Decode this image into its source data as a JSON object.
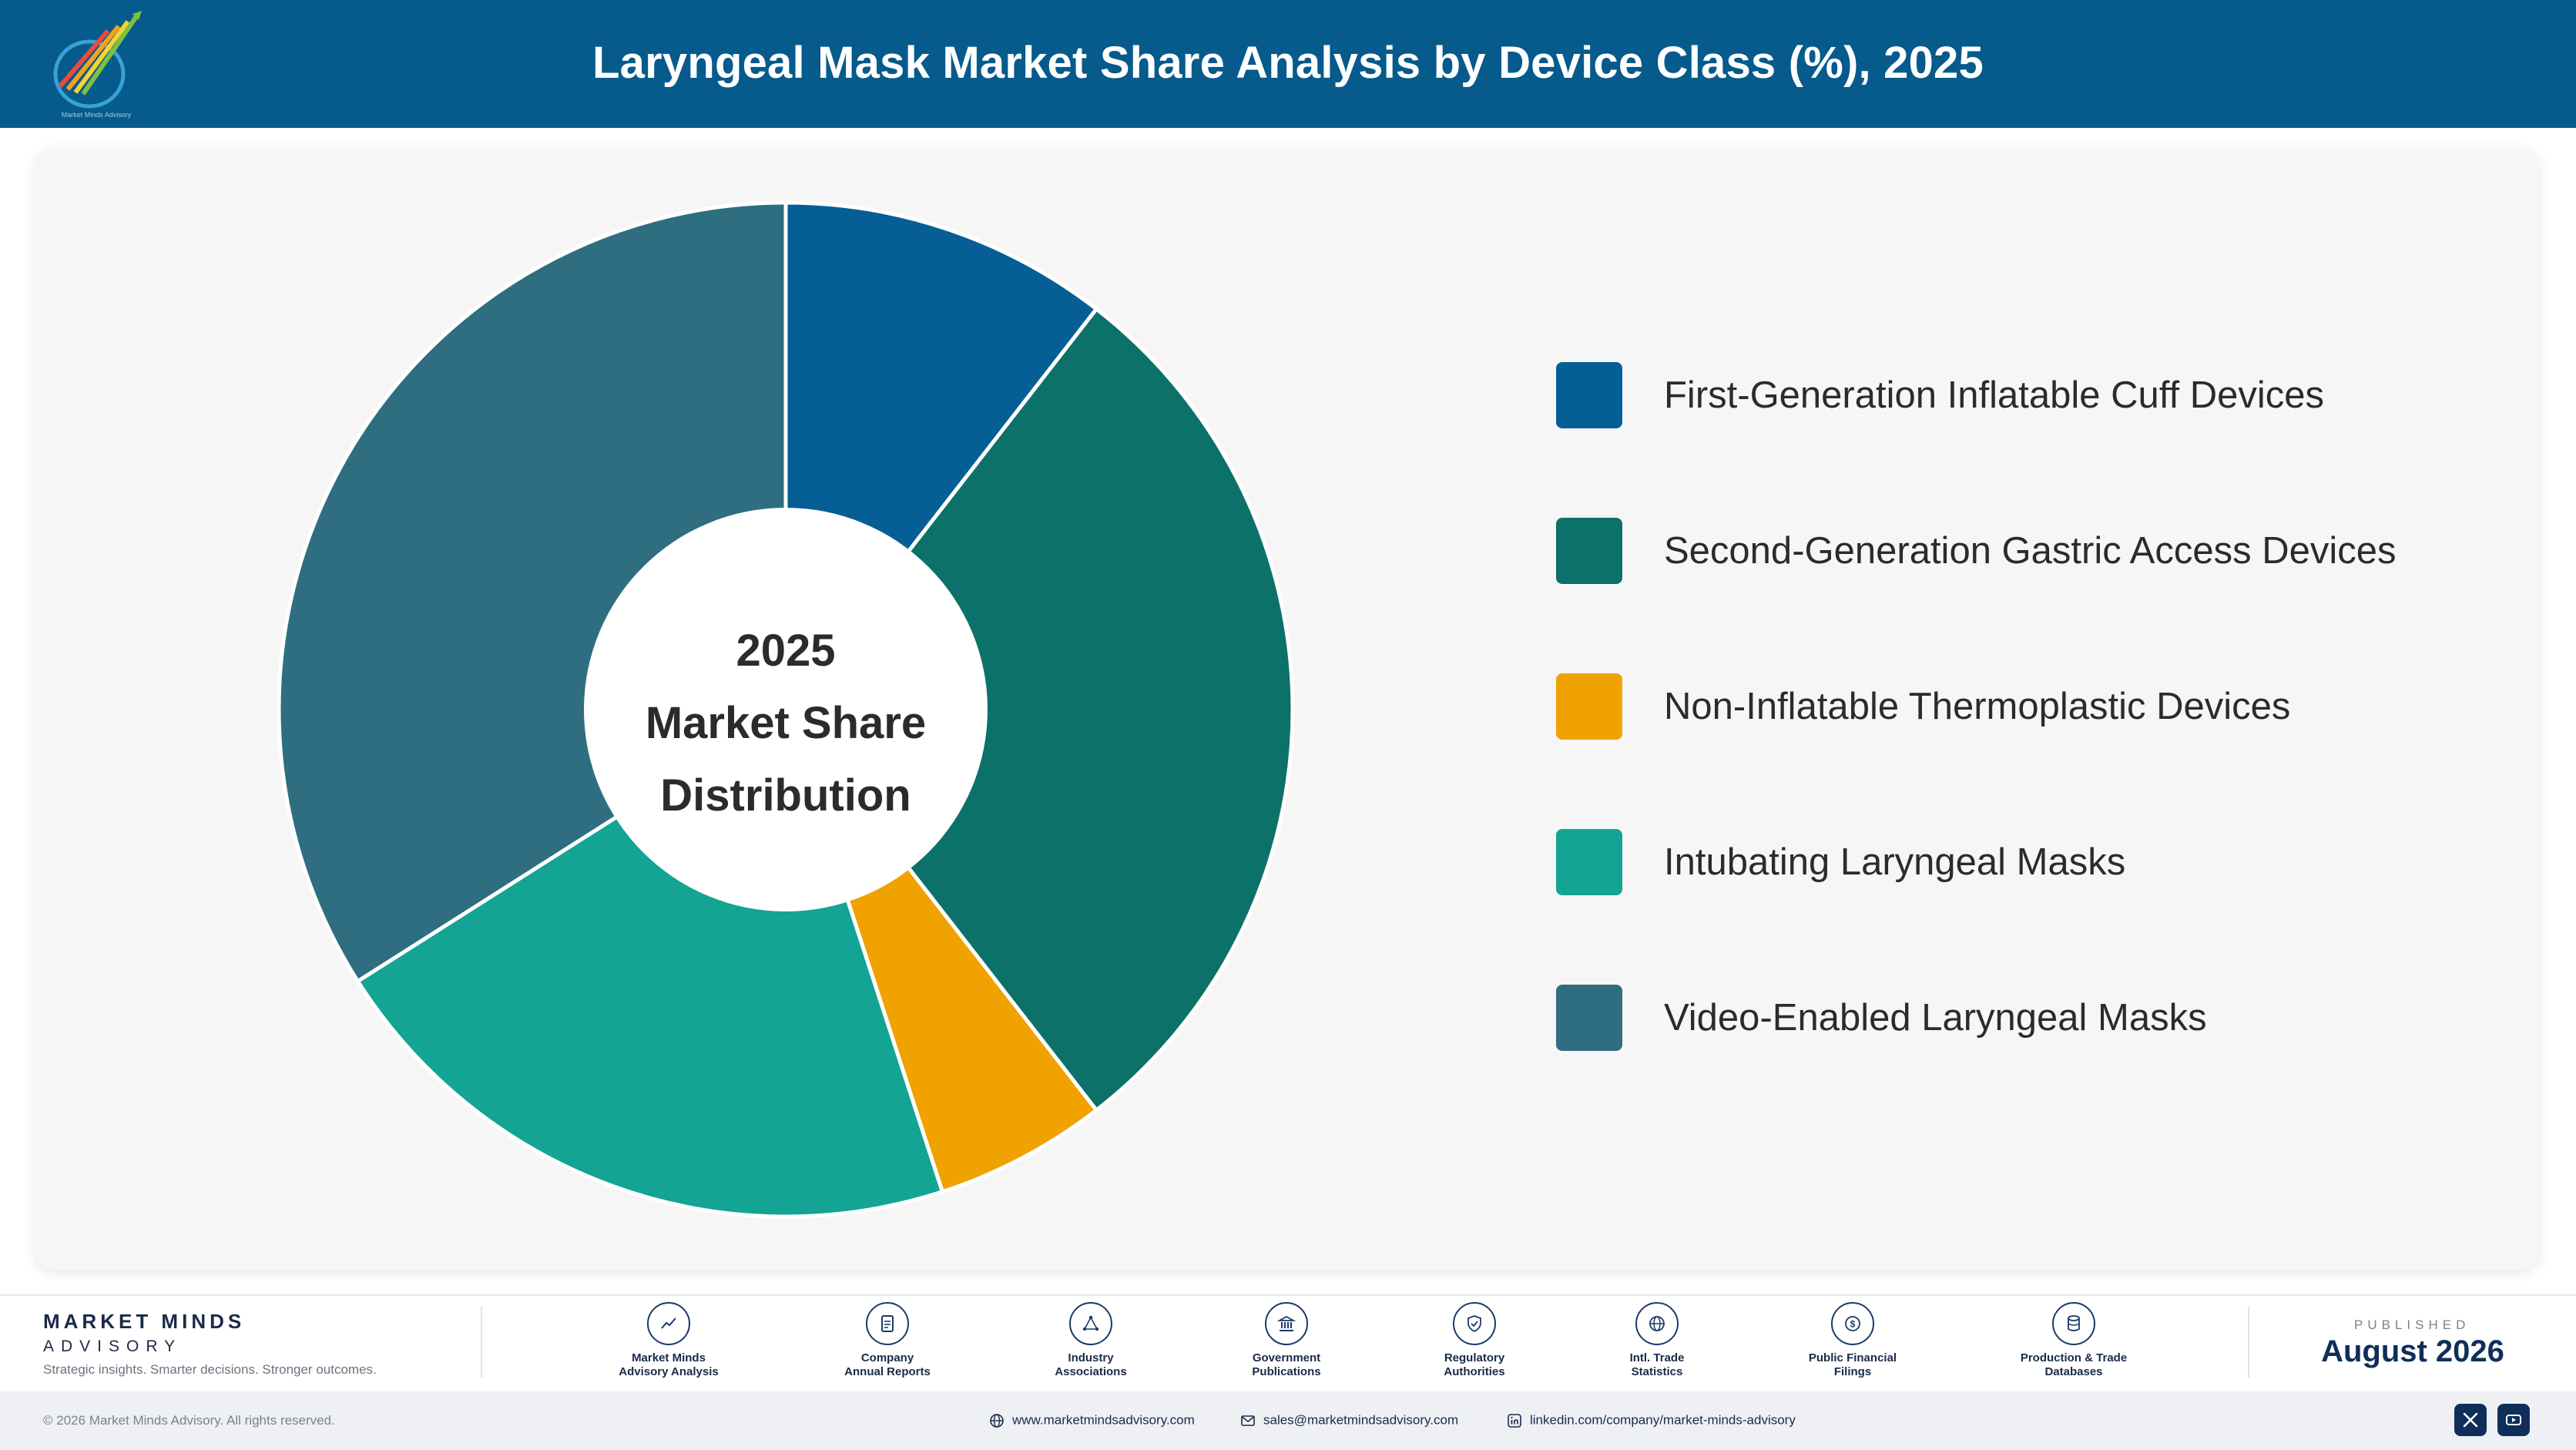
{
  "header": {
    "title": "Laryngeal Mask Market Share Analysis by Device Class (%), 2025",
    "logo_icon": "market-minds-logo-icon",
    "logo_text": "Market Minds Advisory"
  },
  "chart_data": {
    "type": "pie",
    "variant": "donut",
    "title": "Laryngeal Mask Market Share Analysis by Device Class (%), 2025",
    "center_text": [
      "2025",
      "Market Share",
      "Distribution"
    ],
    "unit": "%",
    "legend_position": "right",
    "categories": [
      "First-Generation Inflatable Cuff Devices",
      "Second-Generation Gastric Access Devices",
      "Non-Inflatable Thermoplastic Devices",
      "Intubating Laryngeal Masks",
      "Video-Enabled Laryngeal Masks"
    ],
    "values": [
      10.5,
      29,
      5.5,
      21,
      34
    ],
    "colors": [
      "#065f94",
      "#0c7169",
      "#f0a201",
      "#13a494",
      "#2e6e80"
    ]
  },
  "footer": {
    "brand_name": "MARKET MINDS",
    "brand_sub": "ADVISORY",
    "tagline": "Strategic insights. Smarter decisions. Stronger outcomes.",
    "sources": [
      {
        "line1": "Market Minds",
        "line2": "Advisory Analysis",
        "icon": "trend-chart-icon"
      },
      {
        "line1": "Company",
        "line2": "Annual Reports",
        "icon": "document-icon"
      },
      {
        "line1": "Industry",
        "line2": "Associations",
        "icon": "network-icon"
      },
      {
        "line1": "Government",
        "line2": "Publications",
        "icon": "government-building-icon"
      },
      {
        "line1": "Regulatory",
        "line2": "Authorities",
        "icon": "shield-check-icon"
      },
      {
        "line1": "Intl. Trade",
        "line2": "Statistics",
        "icon": "globe-icon"
      },
      {
        "line1": "Public Financial",
        "line2": "Filings",
        "icon": "dollar-coin-icon"
      },
      {
        "line1": "Production & Trade",
        "line2": "Databases",
        "icon": "database-icon"
      }
    ],
    "published_label": "PUBLISHED",
    "published_date": "August 2026",
    "copyright": "© 2026 Market Minds Advisory. All rights reserved.",
    "website": "www.marketmindsadvisory.com",
    "email": "sales@marketmindsadvisory.com",
    "linkedin": "linkedin.com/company/market-minds-advisory",
    "accent": "#065a8c",
    "navy": "#0f2f5a"
  }
}
